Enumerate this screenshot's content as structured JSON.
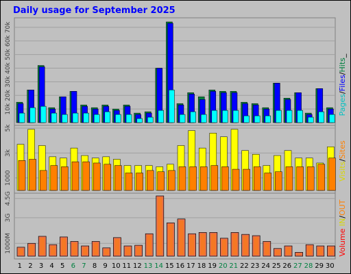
{
  "title": "Daily usage for September 2025",
  "colors": {
    "background": "#c0c0c0",
    "pages": "#00ffff",
    "files": "#0000ff",
    "hits": "#008040",
    "visits": "#ffff00",
    "sites": "#ff8000",
    "volume": "#ff4000",
    "volume_fill": "#e87050",
    "title": "#0000ff",
    "weekend_label": "#008040",
    "weekday_label": "#000000"
  },
  "legends": {
    "top": [
      {
        "text": "Pages",
        "color": "#00c0c0"
      },
      {
        "text": "/",
        "color": "#000000"
      },
      {
        "text": "Files",
        "color": "#0000ff"
      },
      {
        "text": "/",
        "color": "#000000"
      },
      {
        "text": "Hits",
        "color": "#008040"
      },
      {
        "text": "_",
        "color": "#000000"
      }
    ],
    "middle": [
      {
        "text": "Visits",
        "color": "#d8d800"
      },
      {
        "text": "/",
        "color": "#000000"
      },
      {
        "text": "Sites",
        "color": "#ff8000"
      }
    ],
    "bottom": [
      {
        "text": "Volume",
        "color": "#ff0000"
      },
      {
        "text": "  ",
        "color": "#000000"
      },
      {
        "text": "IN",
        "color": "#d8d800"
      },
      {
        "text": "/",
        "color": "#000000"
      },
      {
        "text": "OUT",
        "color": "#ff8000"
      }
    ]
  },
  "chart_data": [
    {
      "type": "bar",
      "name_from_legend": "Pages / Files / Hits",
      "scale": "linear",
      "ylim": [
        0,
        75000
      ],
      "y_ticks": [
        "10k",
        "20k",
        "30k",
        "40k",
        "50k",
        "60k",
        "70k"
      ],
      "y_tick_values": [
        10000,
        20000,
        30000,
        40000,
        50000,
        60000,
        70000
      ],
      "categories": [
        "1",
        "2",
        "3",
        "4",
        "5",
        "6",
        "7",
        "8",
        "9",
        "10",
        "11",
        "12",
        "13",
        "14",
        "15",
        "16",
        "17",
        "18",
        "19",
        "20",
        "21",
        "22",
        "23",
        "24",
        "25",
        "26",
        "27",
        "28",
        "29",
        "30"
      ],
      "series": [
        {
          "name": "Hits",
          "values": [
            15000,
            24000,
            42000,
            11000,
            19000,
            23000,
            13000,
            11000,
            13000,
            10000,
            13000,
            7000,
            8000,
            40000,
            74000,
            14000,
            22000,
            19000,
            24000,
            23000,
            23000,
            15000,
            14000,
            11000,
            29000,
            18000,
            22000,
            7000,
            25000,
            11000
          ]
        },
        {
          "name": "Files",
          "values": [
            14000,
            24000,
            41000,
            10000,
            19000,
            23000,
            12000,
            10000,
            12000,
            9000,
            12000,
            6000,
            7000,
            40000,
            73000,
            13000,
            21000,
            17000,
            23000,
            22000,
            22000,
            14000,
            13000,
            10000,
            29000,
            17000,
            22000,
            6000,
            25000,
            10000
          ]
        },
        {
          "name": "Pages",
          "values": [
            7000,
            11000,
            12000,
            7000,
            6000,
            7000,
            7000,
            6000,
            8000,
            6000,
            6000,
            3000,
            4000,
            9000,
            24000,
            6000,
            8000,
            6000,
            9000,
            9000,
            9000,
            5000,
            5000,
            5000,
            9000,
            9000,
            9000,
            4000,
            8000,
            6000
          ]
        }
      ]
    },
    {
      "type": "bar",
      "name_from_legend": "Visits / Sites",
      "scale": "linear",
      "ylim": [
        0,
        5000
      ],
      "y_ticks": [
        "1000",
        "3k",
        "5k"
      ],
      "y_tick_values": [
        1000,
        3000,
        5000
      ],
      "categories": [
        "1",
        "2",
        "3",
        "4",
        "5",
        "6",
        "7",
        "8",
        "9",
        "10",
        "11",
        "12",
        "13",
        "14",
        "15",
        "16",
        "17",
        "18",
        "19",
        "20",
        "21",
        "22",
        "23",
        "24",
        "25",
        "26",
        "27",
        "28",
        "29",
        "30"
      ],
      "series": [
        {
          "name": "Visits",
          "values": [
            3700,
            4900,
            3600,
            2700,
            2600,
            3400,
            2800,
            2600,
            2700,
            2500,
            2000,
            2000,
            2000,
            1900,
            2100,
            3600,
            4800,
            3400,
            4600,
            4300,
            4900,
            3200,
            2900,
            2000,
            2800,
            3200,
            2600,
            2600,
            2200,
            3500
          ]
        },
        {
          "name": "Sites",
          "values": [
            2400,
            2500,
            1600,
            2000,
            1900,
            2300,
            2300,
            2200,
            2100,
            2000,
            1400,
            1400,
            1600,
            1500,
            1600,
            1900,
            1900,
            1900,
            2000,
            1900,
            1700,
            1700,
            1900,
            1400,
            1500,
            1900,
            1900,
            1900,
            2100,
            2600
          ]
        }
      ]
    },
    {
      "type": "bar",
      "name_from_legend": "Volume",
      "scale": "linear",
      "ylim": [
        0,
        4700
      ],
      "y_ticks": [
        "1000M",
        "3G",
        "4.5G"
      ],
      "y_tick_values": [
        1000,
        3000,
        4500
      ],
      "categories": [
        "1",
        "2",
        "3",
        "4",
        "5",
        "6",
        "7",
        "8",
        "9",
        "10",
        "11",
        "12",
        "13",
        "14",
        "15",
        "16",
        "17",
        "18",
        "19",
        "20",
        "21",
        "22",
        "23",
        "24",
        "25",
        "26",
        "27",
        "28",
        "29",
        "30"
      ],
      "series": [
        {
          "name": "Volume",
          "values": [
            700,
            1000,
            1550,
            900,
            1500,
            1150,
            800,
            1150,
            650,
            1450,
            800,
            850,
            1750,
            4700,
            2600,
            2900,
            1750,
            1850,
            1850,
            1400,
            1850,
            1700,
            1600,
            1150,
            600,
            800,
            300,
            900,
            800,
            800
          ]
        }
      ]
    }
  ],
  "weekend_days": [
    "6",
    "7",
    "13",
    "14",
    "20",
    "21",
    "27",
    "28"
  ]
}
